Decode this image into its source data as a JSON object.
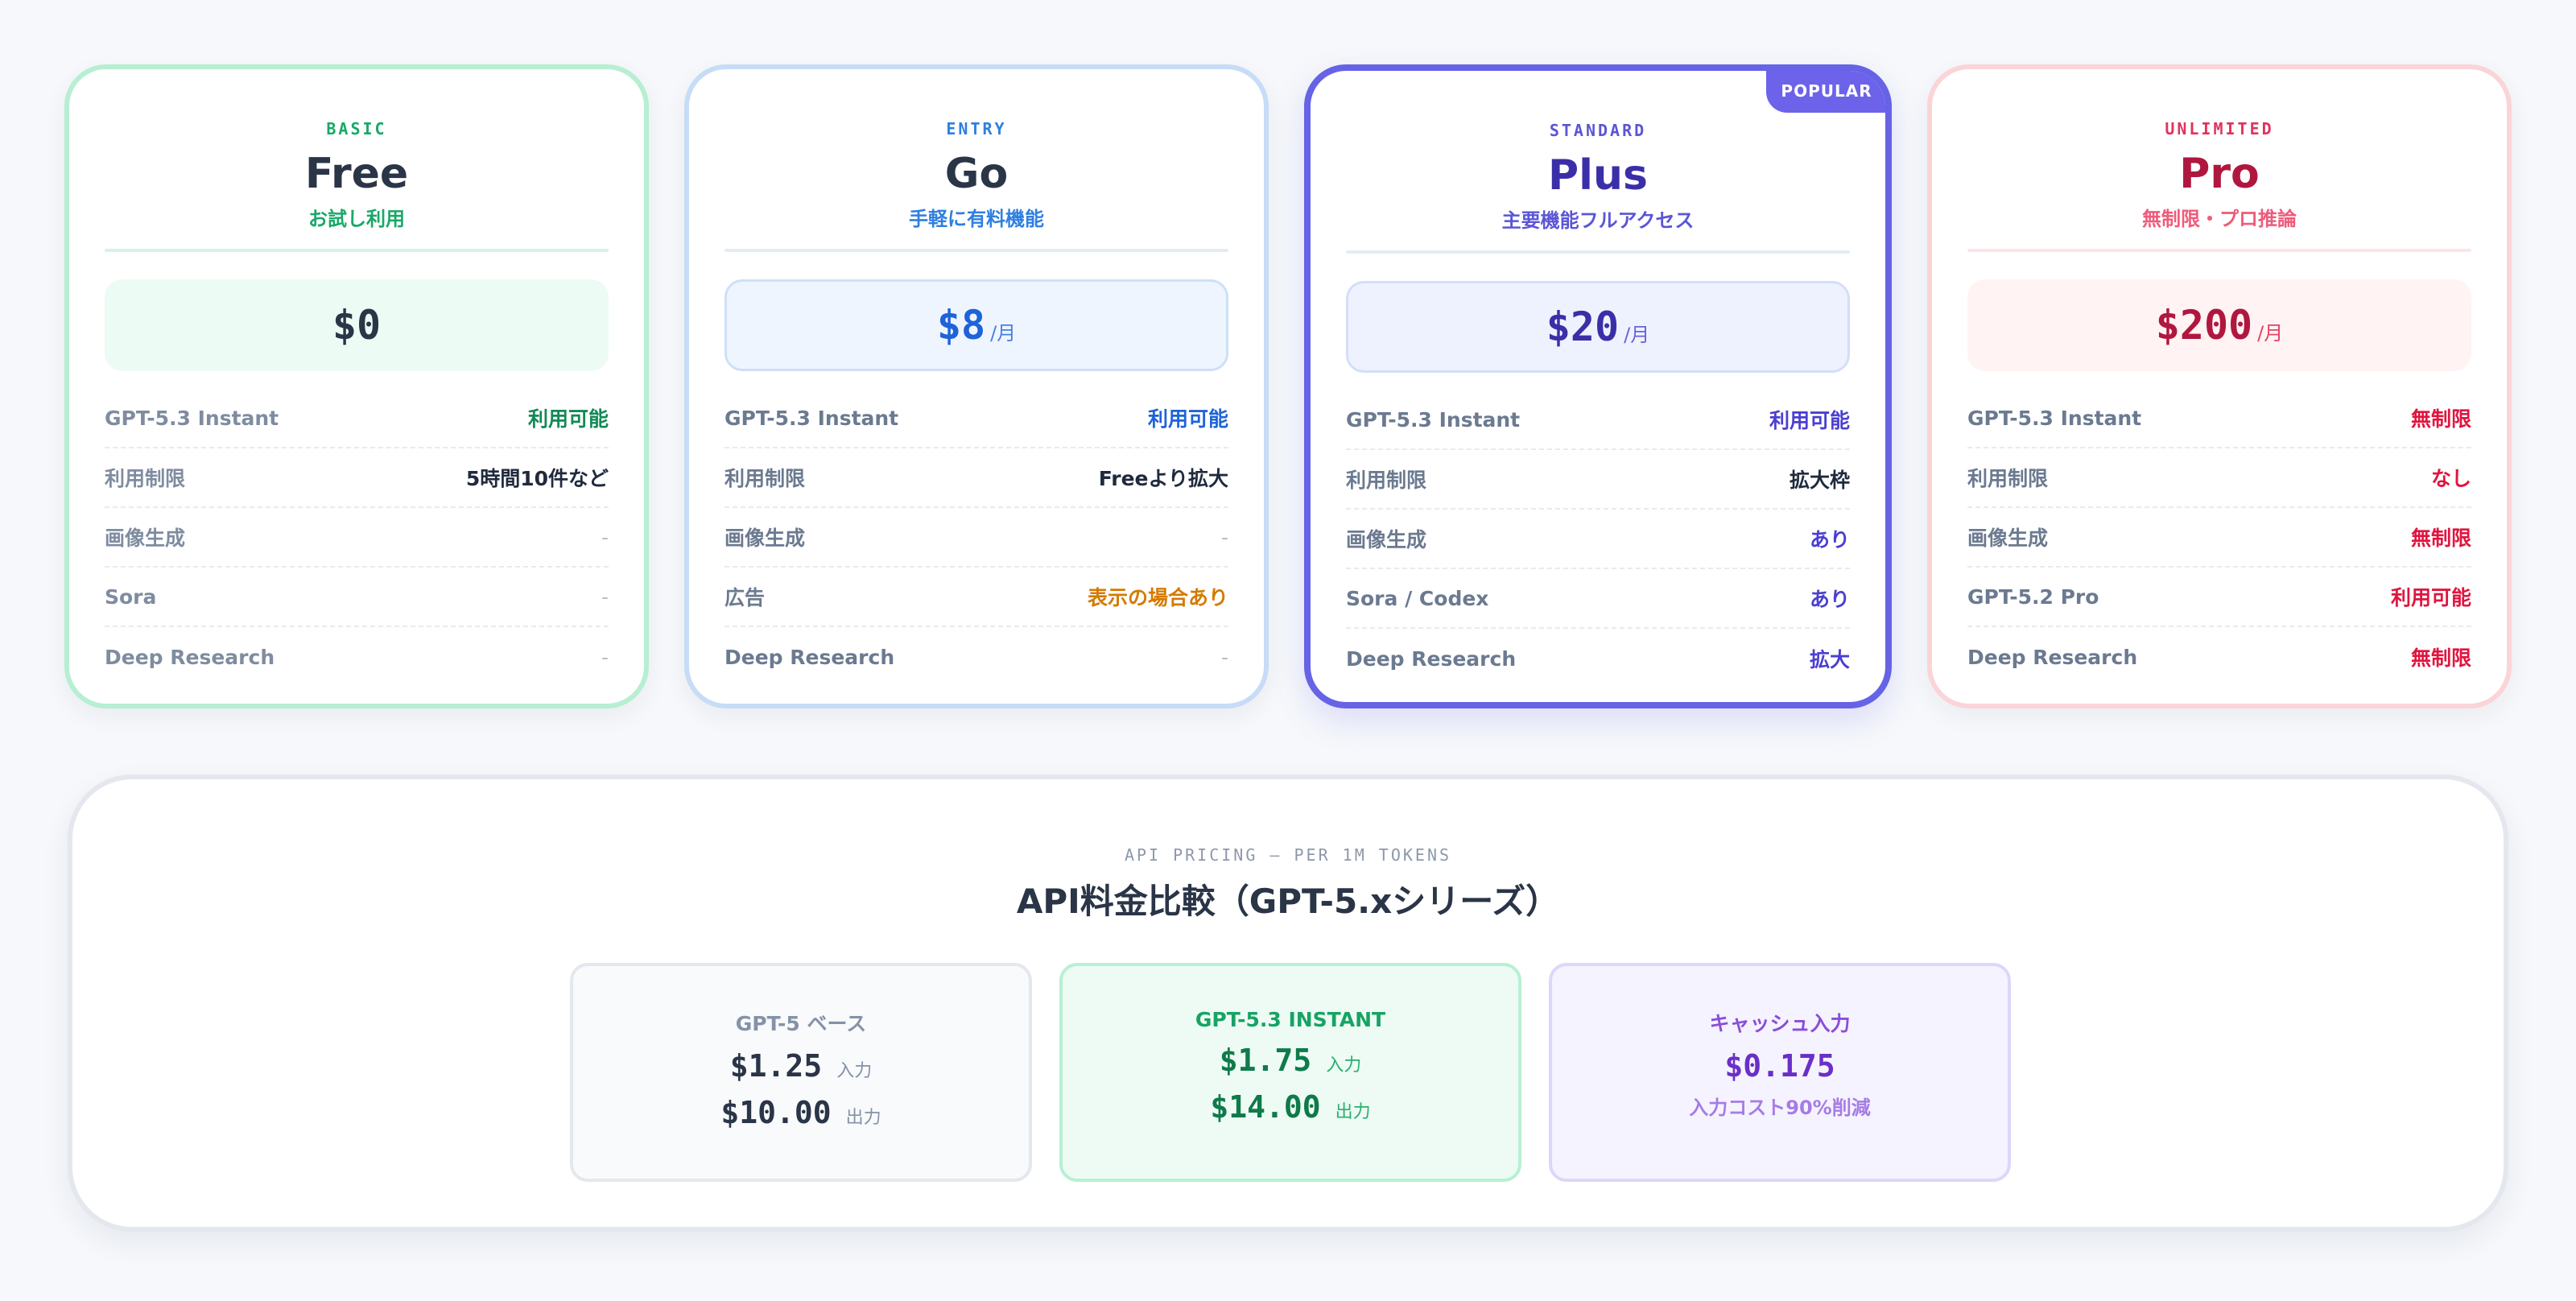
{
  "plans": [
    {
      "tier": "BASIC",
      "name": "Free",
      "subtitle": "お試し利用",
      "price": "$0",
      "per": "",
      "rows": [
        {
          "k": "GPT-5.3 Instant",
          "v": "利用可能"
        },
        {
          "k": "利用制限",
          "v": "5時間10件など"
        },
        {
          "k": "画像生成",
          "v": "-"
        },
        {
          "k": "Sora",
          "v": "-"
        },
        {
          "k": "Deep Research",
          "v": "-"
        }
      ]
    },
    {
      "tier": "ENTRY",
      "name": "Go",
      "subtitle": "手軽に有料機能",
      "price": "$8",
      "per": "/月",
      "rows": [
        {
          "k": "GPT-5.3 Instant",
          "v": "利用可能"
        },
        {
          "k": "利用制限",
          "v": "Freeより拡大"
        },
        {
          "k": "画像生成",
          "v": "-"
        },
        {
          "k": "広告",
          "v": "表示の場合あり"
        },
        {
          "k": "Deep Research",
          "v": "-"
        }
      ]
    },
    {
      "tier": "STANDARD",
      "name": "Plus",
      "subtitle": "主要機能フルアクセス",
      "badge": "POPULAR",
      "price": "$20",
      "per": "/月",
      "rows": [
        {
          "k": "GPT-5.3 Instant",
          "v": "利用可能"
        },
        {
          "k": "利用制限",
          "v": "拡大枠"
        },
        {
          "k": "画像生成",
          "v": "あり"
        },
        {
          "k": "Sora / Codex",
          "v": "あり"
        },
        {
          "k": "Deep Research",
          "v": "拡大"
        }
      ]
    },
    {
      "tier": "UNLIMITED",
      "name": "Pro",
      "subtitle": "無制限・プロ推論",
      "price": "$200",
      "per": "/月",
      "rows": [
        {
          "k": "GPT-5.3 Instant",
          "v": "無制限"
        },
        {
          "k": "利用制限",
          "v": "なし"
        },
        {
          "k": "画像生成",
          "v": "無制限"
        },
        {
          "k": "GPT-5.2 Pro",
          "v": "利用可能"
        },
        {
          "k": "Deep Research",
          "v": "無制限"
        }
      ]
    }
  ],
  "api": {
    "eyebrow": "API PRICING — PER 1M TOKENS",
    "title": "API料金比較（GPT-5.xシリーズ）",
    "boxes": [
      {
        "title": "GPT-5 ベース",
        "input_price": "$1.25",
        "input_label": "入力",
        "output_price": "$10.00",
        "output_label": "出力"
      },
      {
        "title": "GPT-5.3 INSTANT",
        "input_price": "$1.75",
        "input_label": "入力",
        "output_price": "$14.00",
        "output_label": "出力"
      },
      {
        "title": "キャッシュ入力",
        "price": "$0.175",
        "note": "入力コスト90%削減"
      }
    ]
  }
}
